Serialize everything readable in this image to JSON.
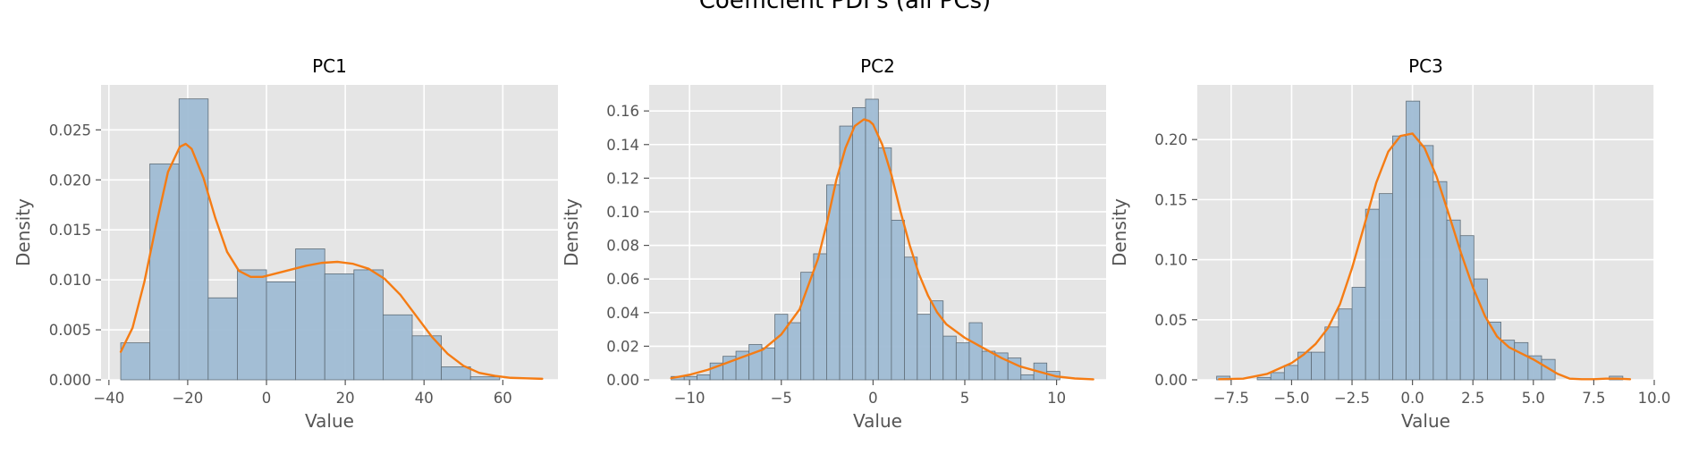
{
  "figure": {
    "suptitle": "Coefficient PDFs (all PCs)"
  },
  "chart_data": [
    {
      "type": "bar",
      "title": "PC1",
      "xlabel": "Value",
      "ylabel": "Density",
      "xlim": [
        -42,
        74
      ],
      "ylim": [
        0,
        0.0295
      ],
      "xticks": [
        -40,
        -20,
        0,
        20,
        40,
        60
      ],
      "yticks": [
        0.0,
        0.005,
        0.01,
        0.015,
        0.02,
        0.025
      ],
      "ytick_labels": [
        "0.000",
        "0.005",
        "0.010",
        "0.015",
        "0.020",
        "0.025"
      ],
      "xtick_labels": [
        "−40",
        "−20",
        "0",
        "20",
        "40",
        "60"
      ],
      "grid": true,
      "hist": {
        "bin_edges": [
          -37,
          -29.6,
          -22.2,
          -14.8,
          -7.4,
          0,
          7.4,
          14.8,
          22.2,
          29.6,
          37,
          44.4,
          51.8,
          59.2,
          66.6
        ],
        "density": [
          0.0037,
          0.0216,
          0.0281,
          0.0082,
          0.011,
          0.0098,
          0.0131,
          0.0106,
          0.011,
          0.0065,
          0.0044,
          0.0013,
          0.0003,
          0.0
        ]
      },
      "kde": {
        "x": [
          -37,
          -34,
          -31,
          -28,
          -25,
          -22,
          -20.5,
          -19,
          -16,
          -13,
          -10,
          -7,
          -4,
          -1,
          2,
          6,
          10,
          14,
          18,
          22,
          26,
          30,
          34,
          38,
          42,
          46,
          50,
          54,
          58,
          62,
          66,
          70
        ],
        "y": [
          0.0028,
          0.0052,
          0.0098,
          0.0155,
          0.0208,
          0.0233,
          0.0236,
          0.0231,
          0.0202,
          0.0162,
          0.0128,
          0.0109,
          0.0103,
          0.0103,
          0.0106,
          0.011,
          0.0114,
          0.0117,
          0.0118,
          0.0116,
          0.0111,
          0.0101,
          0.0085,
          0.0064,
          0.0043,
          0.0026,
          0.0014,
          0.0007,
          0.0004,
          0.0002,
          0.00015,
          0.0001
        ]
      }
    },
    {
      "type": "bar",
      "title": "PC2",
      "xlabel": "Value",
      "ylabel": "Density",
      "xlim": [
        -12.2,
        12.7
      ],
      "ylim": [
        0,
        0.1755
      ],
      "xticks": [
        -10,
        -5,
        0,
        5,
        10
      ],
      "yticks": [
        0.0,
        0.02,
        0.04,
        0.06,
        0.08,
        0.1,
        0.12,
        0.14,
        0.16
      ],
      "ytick_labels": [
        "0.00",
        "0.02",
        "0.04",
        "0.06",
        "0.08",
        "0.10",
        "0.12",
        "0.14",
        "0.16"
      ],
      "xtick_labels": [
        "−10",
        "−5",
        "0",
        "5",
        "10"
      ],
      "grid": true,
      "hist": {
        "bin_edges": [
          -11.0,
          -10.29,
          -9.59,
          -8.88,
          -8.18,
          -7.47,
          -6.76,
          -6.06,
          -5.35,
          -4.65,
          -3.94,
          -3.24,
          -2.53,
          -1.82,
          -1.12,
          -0.41,
          0.29,
          1.0,
          1.71,
          2.41,
          3.12,
          3.82,
          4.53,
          5.24,
          5.94,
          6.65,
          7.35,
          8.06,
          8.76,
          9.47,
          10.18
        ],
        "density": [
          0.002,
          0.002,
          0.003,
          0.01,
          0.014,
          0.017,
          0.021,
          0.019,
          0.039,
          0.034,
          0.064,
          0.075,
          0.116,
          0.151,
          0.162,
          0.167,
          0.138,
          0.095,
          0.073,
          0.039,
          0.047,
          0.026,
          0.022,
          0.034,
          0.017,
          0.016,
          0.013,
          0.003,
          0.01,
          0.005
        ]
      },
      "kde": {
        "x": [
          -11,
          -10,
          -9,
          -8,
          -7,
          -6,
          -5,
          -4,
          -3,
          -2.5,
          -2,
          -1.5,
          -1,
          -0.5,
          -0.2,
          0,
          0.5,
          1,
          1.5,
          2,
          2.5,
          3,
          3.5,
          4,
          5,
          6,
          7,
          8,
          9,
          10,
          11,
          12
        ],
        "y": [
          0.001,
          0.003,
          0.006,
          0.01,
          0.014,
          0.018,
          0.027,
          0.042,
          0.072,
          0.094,
          0.119,
          0.138,
          0.151,
          0.155,
          0.154,
          0.152,
          0.14,
          0.122,
          0.1,
          0.08,
          0.063,
          0.05,
          0.04,
          0.033,
          0.025,
          0.019,
          0.013,
          0.008,
          0.005,
          0.002,
          0.0008,
          0.0003
        ]
      }
    },
    {
      "type": "bar",
      "title": "PC3",
      "xlabel": "Value",
      "ylabel": "Density",
      "xlim": [
        -8.9,
        10.0
      ],
      "ylim": [
        0,
        0.2455
      ],
      "xticks": [
        -7.5,
        -5.0,
        -2.5,
        0.0,
        2.5,
        5.0,
        7.5,
        10.0
      ],
      "yticks": [
        0.0,
        0.05,
        0.1,
        0.15,
        0.2
      ],
      "ytick_labels": [
        "0.00",
        "0.05",
        "0.10",
        "0.15",
        "0.20"
      ],
      "xtick_labels": [
        "−7.5",
        "−5.0",
        "−2.5",
        "0.0",
        "2.5",
        "5.0",
        "7.5",
        "10.0"
      ],
      "grid": true,
      "hist": {
        "bin_edges": [
          -8.1,
          -7.54,
          -6.98,
          -6.42,
          -5.86,
          -5.3,
          -4.74,
          -4.18,
          -3.62,
          -3.06,
          -2.5,
          -1.94,
          -1.38,
          -0.82,
          -0.26,
          0.3,
          0.86,
          1.42,
          1.98,
          2.54,
          3.1,
          3.66,
          4.22,
          4.78,
          5.34,
          5.9,
          6.46,
          7.02,
          7.58,
          8.14,
          8.7
        ],
        "density": [
          0.003,
          0.0,
          0.0,
          0.002,
          0.006,
          0.012,
          0.023,
          0.023,
          0.044,
          0.059,
          0.077,
          0.142,
          0.155,
          0.203,
          0.232,
          0.195,
          0.165,
          0.133,
          0.12,
          0.084,
          0.048,
          0.033,
          0.031,
          0.02,
          0.017,
          0.0,
          0.0,
          0.0,
          0.0,
          0.003
        ]
      },
      "kde": {
        "x": [
          -8,
          -7,
          -6,
          -5,
          -4.5,
          -4,
          -3.5,
          -3,
          -2.5,
          -2,
          -1.5,
          -1,
          -0.5,
          0,
          0.5,
          1,
          1.5,
          2,
          2.5,
          3,
          3.5,
          4,
          4.5,
          5,
          5.5,
          6,
          6.5,
          7,
          7.5,
          8,
          8.5,
          9
        ],
        "y": [
          0.0005,
          0.001,
          0.005,
          0.014,
          0.021,
          0.03,
          0.043,
          0.063,
          0.093,
          0.128,
          0.164,
          0.19,
          0.203,
          0.205,
          0.193,
          0.169,
          0.138,
          0.106,
          0.077,
          0.053,
          0.036,
          0.027,
          0.022,
          0.017,
          0.011,
          0.005,
          0.001,
          0.0005,
          0.0005,
          0.001,
          0.001,
          0.0005
        ]
      }
    }
  ],
  "colors": {
    "axes_bg": "#e5e5e5",
    "grid": "#ffffff",
    "bar_fill": "#9fbcd4",
    "bar_edge": "#5f6d78",
    "kde_line": "#f57c14",
    "tick_text": "#555555",
    "label_text": "#555555",
    "title_text": "#000000"
  }
}
